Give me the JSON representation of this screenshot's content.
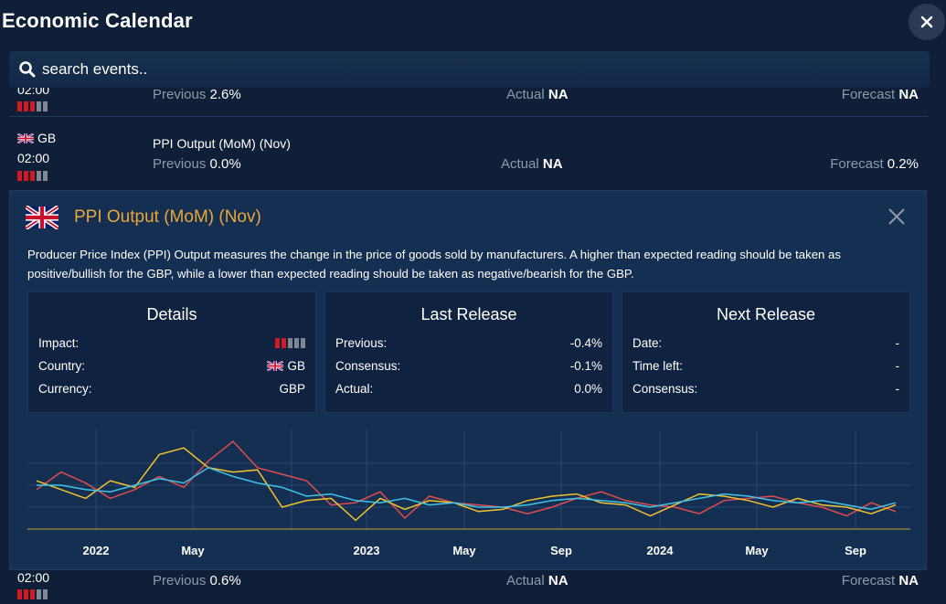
{
  "app": {
    "title": "Economic Calendar"
  },
  "search": {
    "placeholder": "search events.."
  },
  "events": [
    {
      "time": "02:00",
      "previous_label": "Previous",
      "previous": "2.6%",
      "actual_label": "Actual",
      "actual": "NA",
      "forecast_label": "Forecast",
      "forecast": "NA",
      "impact": [
        1,
        1,
        1,
        0,
        0
      ]
    },
    {
      "country": "GB",
      "time": "02:00",
      "name": "PPI Output (MoM) (Nov)",
      "previous_label": "Previous",
      "previous": "0.0%",
      "actual_label": "Actual",
      "actual": "NA",
      "forecast_label": "Forecast",
      "forecast": "0.2%",
      "impact": [
        1,
        1,
        1,
        0,
        0
      ]
    },
    {
      "time": "02:00",
      "previous_label": "Previous",
      "previous": "0.6%",
      "actual_label": "Actual",
      "actual": "NA",
      "forecast_label": "Forecast",
      "forecast": "NA",
      "impact": [
        1,
        1,
        1,
        0,
        0
      ]
    }
  ],
  "detail": {
    "title": "PPI Output (MoM) (Nov)",
    "description": "Producer Price Index (PPI) Output measures the change in the price of goods sold by manufacturers. A higher than expected reading should be taken as positive/bullish for the GBP, while a lower than expected reading should be taken as negative/bearish for the GBP.",
    "details": {
      "title": "Details",
      "impact_label": "Impact:",
      "impact": [
        1,
        1,
        0,
        0,
        0
      ],
      "country_label": "Country:",
      "country": "GB",
      "currency_label": "Currency:",
      "currency": "GBP"
    },
    "last_release": {
      "title": "Last Release",
      "previous_label": "Previous:",
      "previous": "-0.4%",
      "consensus_label": "Consensus:",
      "consensus": "-0.1%",
      "actual_label": "Actual:",
      "actual": "0.0%"
    },
    "next_release": {
      "title": "Next Release",
      "date_label": "Date:",
      "date": "-",
      "time_left_label": "Time left:",
      "time_left": "-",
      "consensus_label": "Consensus:",
      "consensus": "-"
    }
  },
  "colors": {
    "accent": "#e8a838",
    "impact_red": "#d01b22",
    "impact_grey": "#7e8792",
    "series_red": "#e24c4c",
    "series_yellow": "#f2c22e",
    "series_cyan": "#3ec4e8"
  },
  "chart_data": {
    "type": "line",
    "x_tick_labels": [
      "2022",
      "May",
      "2023",
      "May",
      "Sep",
      "2024",
      "May",
      "Sep"
    ],
    "ylim": [
      -1,
      3.5
    ],
    "grid": true,
    "series": [
      {
        "color": "#e24c4c",
        "values": [
          0.8,
          1.6,
          1.1,
          0.4,
          0.8,
          1.4,
          0.9,
          2.1,
          3.0,
          1.8,
          1.5,
          1.2,
          0.1,
          0.2,
          0.7,
          -0.5,
          0.5,
          0.2,
          0.1,
          0.0,
          -0.3,
          0.0,
          0.4,
          0.7,
          0.3,
          0.1,
          0.0,
          -0.3,
          0.3,
          0.4,
          0.5,
          0.2,
          0.0,
          -0.4,
          0.2,
          -0.2
        ]
      },
      {
        "color": "#f2c22e",
        "values": [
          1.2,
          0.8,
          0.4,
          1.2,
          0.9,
          2.4,
          2.7,
          1.8,
          1.6,
          1.7,
          0.0,
          0.3,
          0.4,
          -0.6,
          0.4,
          -0.1,
          0.3,
          0.2,
          -0.2,
          -0.1,
          0.3,
          0.5,
          0.6,
          0.2,
          0.1,
          -0.4,
          0.1,
          0.6,
          0.5,
          0.3,
          0.0,
          0.4,
          0.1,
          0.0,
          -0.3,
          0.1
        ]
      },
      {
        "color": "#3ec4e8",
        "values": [
          1.0,
          1.0,
          0.8,
          0.7,
          1.0,
          1.3,
          1.1,
          1.8,
          1.4,
          1.1,
          0.9,
          0.5,
          0.6,
          0.3,
          0.2,
          0.4,
          0.1,
          0.2,
          0.0,
          0.0,
          0.1,
          0.3,
          0.4,
          0.3,
          0.2,
          0.0,
          0.2,
          0.4,
          0.6,
          0.5,
          0.3,
          0.2,
          0.3,
          0.1,
          -0.1,
          0.2
        ]
      }
    ]
  }
}
